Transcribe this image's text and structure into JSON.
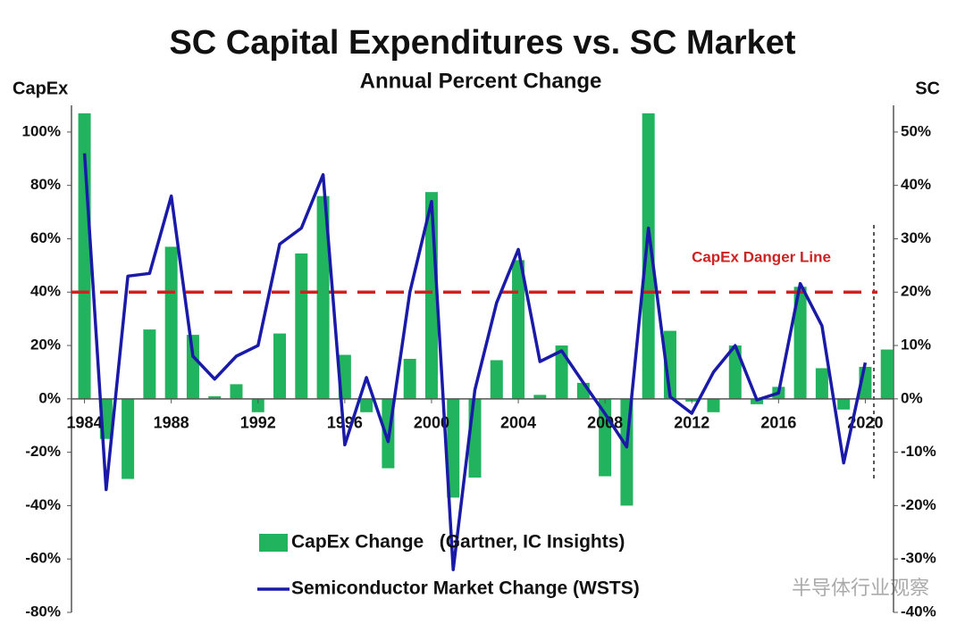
{
  "chart_data": {
    "type": "bar",
    "title": "SC Capital Expenditures vs. SC Market",
    "subtitle": "Annual Percent Change",
    "y_label": "CapEx",
    "y2_label": "SC",
    "x": [
      1984,
      1985,
      1986,
      1987,
      1988,
      1989,
      1990,
      1991,
      1992,
      1993,
      1994,
      1995,
      1996,
      1997,
      1998,
      1999,
      2000,
      2001,
      2002,
      2003,
      2004,
      2005,
      2006,
      2007,
      2008,
      2009,
      2010,
      2011,
      2012,
      2013,
      2014,
      2015,
      2016,
      2017,
      2018,
      2019,
      2020,
      2021
    ],
    "series": [
      {
        "name": "CapEx Change   (Gartner, IC Insights)",
        "type": "bar",
        "color": "#22b35e",
        "values": [
          107,
          -15,
          -30,
          26,
          57,
          24,
          1,
          5.5,
          -5,
          24.5,
          54.5,
          76,
          16.5,
          -5,
          -26,
          15,
          77.5,
          -37,
          -29.5,
          14.5,
          52,
          1.5,
          20,
          6,
          -29,
          -40,
          107,
          25.5,
          -1,
          -5,
          20,
          -2,
          4.5,
          42,
          11.5,
          -4,
          12,
          18.5
        ]
      },
      {
        "name": "Semiconductor Market Change (WSTS)",
        "type": "line",
        "color": "#1a1aa8",
        "axis": "y2",
        "values": [
          46,
          -17,
          23,
          23.5,
          38,
          8,
          3.7,
          8,
          10,
          29,
          32,
          42,
          -8.6,
          4,
          -8,
          20,
          37,
          -32,
          1.7,
          18,
          28,
          7,
          9,
          3,
          -2.8,
          -9,
          32,
          0.4,
          -2.7,
          5,
          10,
          -0.2,
          1.1,
          21.6,
          13.7,
          -12,
          6.8,
          null
        ]
      }
    ],
    "xlim": [
      1983.4,
      2021.3
    ],
    "xticks": [
      1984,
      1988,
      1992,
      1996,
      2000,
      2004,
      2008,
      2012,
      2016,
      2020
    ],
    "ylim": [
      -80,
      110
    ],
    "yticks": [
      {
        "value": -80,
        "label": "-80%"
      },
      {
        "value": -60,
        "label": "-60%"
      },
      {
        "value": -40,
        "label": "-40%"
      },
      {
        "value": -20,
        "label": "-20%"
      },
      {
        "value": 0,
        "label": "0%"
      },
      {
        "value": 20,
        "label": "20%"
      },
      {
        "value": 40,
        "label": "40%"
      },
      {
        "value": 60,
        "label": "60%"
      },
      {
        "value": 80,
        "label": "80%"
      },
      {
        "value": 100,
        "label": "100%"
      }
    ],
    "y2lim": [
      -40,
      55
    ],
    "y2ticks": [
      {
        "value": -40,
        "label": "-40%"
      },
      {
        "value": -30,
        "label": "-30%"
      },
      {
        "value": -20,
        "label": "-20%"
      },
      {
        "value": -10,
        "label": "-10%"
      },
      {
        "value": 0,
        "label": "0%"
      },
      {
        "value": 10,
        "label": "10%"
      },
      {
        "value": 20,
        "label": "20%"
      },
      {
        "value": 30,
        "label": "30%"
      },
      {
        "value": 40,
        "label": "40%"
      },
      {
        "value": 50,
        "label": "50%"
      }
    ],
    "reference_line": {
      "value": 40,
      "label": "CapEx Danger Line",
      "color": "#cc2222"
    }
  },
  "watermark": "半导体行业观察"
}
